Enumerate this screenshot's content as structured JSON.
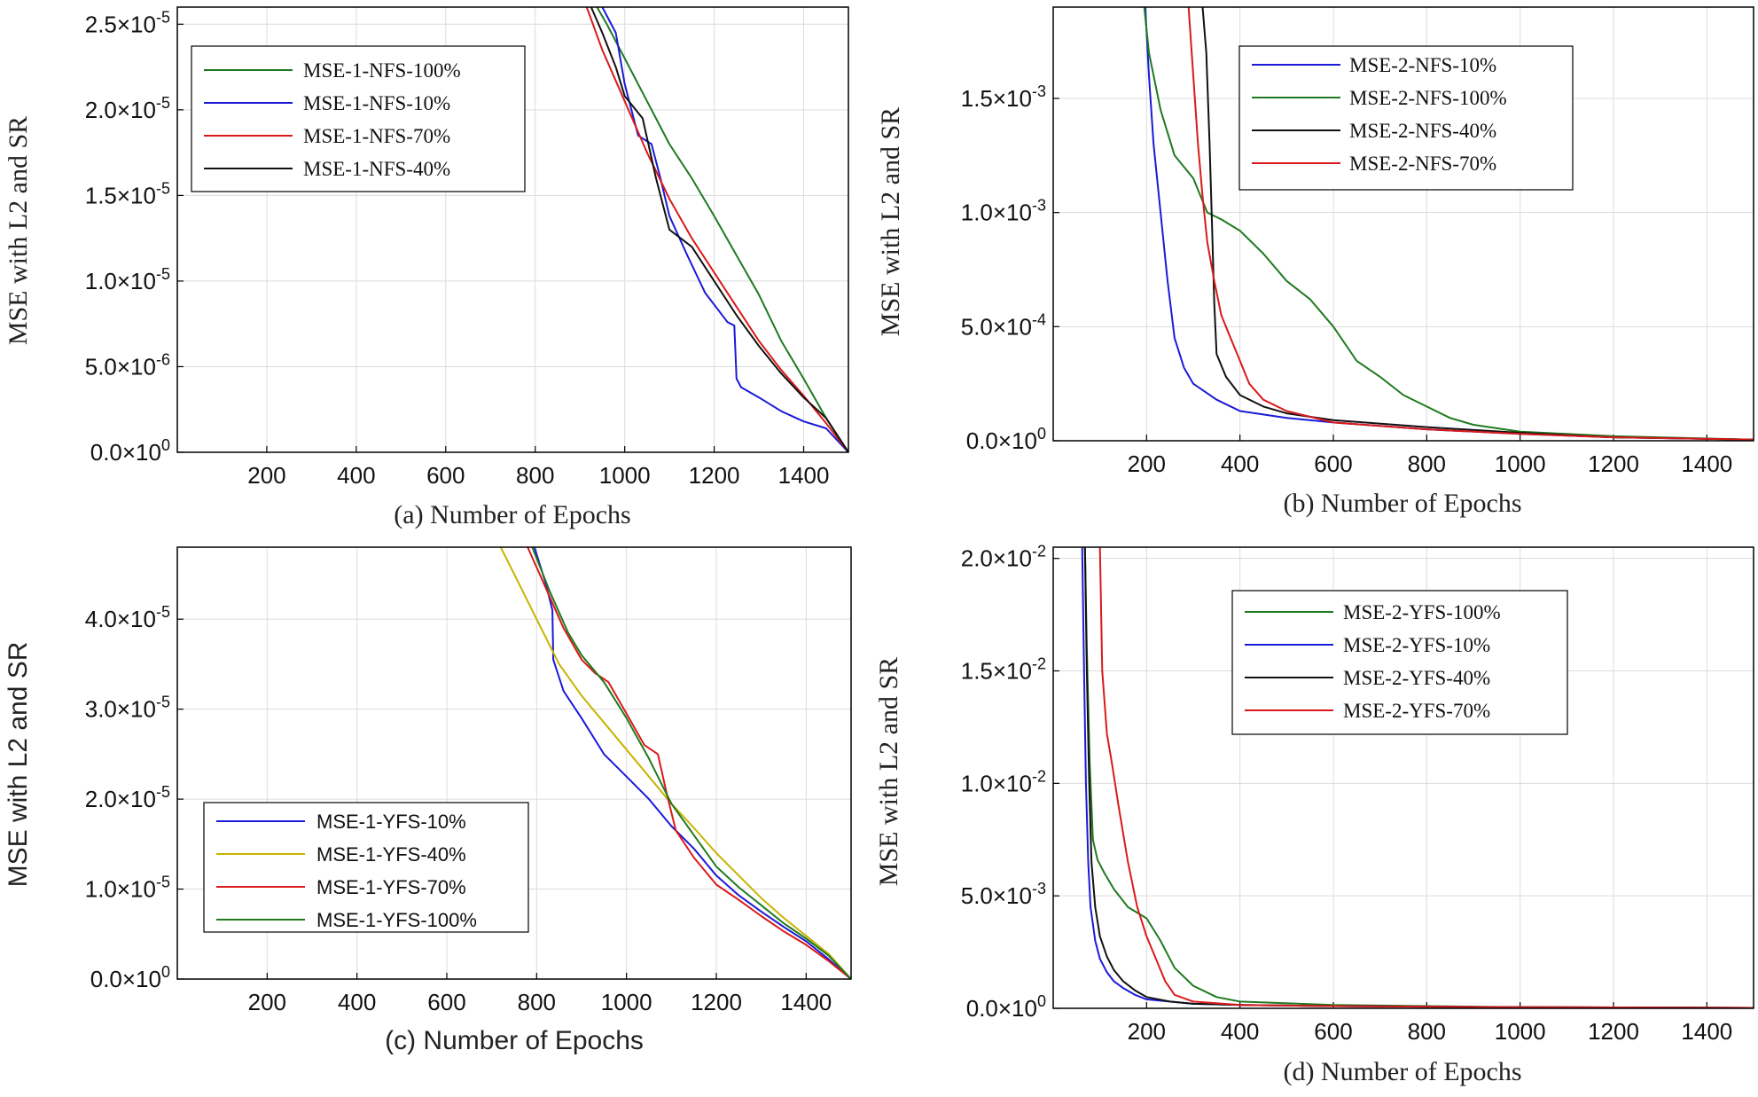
{
  "chart_data": [
    {
      "id": "a",
      "type": "line",
      "xlabel": "(a) Number of Epochs",
      "ylabel": "MSE with L2 and SR",
      "xlim": [
        0,
        1500
      ],
      "ylim": [
        0,
        2.6e-05
      ],
      "xticks": [
        200,
        400,
        600,
        800,
        1000,
        1200,
        1400
      ],
      "yticks": [
        {
          "mant": "0.0",
          "exp": "0"
        },
        {
          "mant": "5.0",
          "exp": "-6"
        },
        {
          "mant": "1.0",
          "exp": "-5"
        },
        {
          "mant": "1.5",
          "exp": "-5"
        },
        {
          "mant": "2.0",
          "exp": "-5"
        },
        {
          "mant": "2.5",
          "exp": "-5"
        }
      ],
      "grid": true,
      "legend_position": "top-left",
      "series": [
        {
          "name": "MSE-1-NFS-100%",
          "color": "#1f7a1f",
          "x": [
            938,
            960,
            1000,
            1050,
            1100,
            1150,
            1200,
            1250,
            1300,
            1350,
            1400,
            1450,
            1500
          ],
          "y": [
            2.6e-05,
            2.5e-05,
            2.3e-05,
            2.05e-05,
            1.8e-05,
            1.6e-05,
            1.38e-05,
            1.15e-05,
            9.2e-06,
            6.5e-06,
            4.3e-06,
            2e-06,
            0
          ]
        },
        {
          "name": "MSE-1-NFS-10%",
          "color": "#1a1ad8",
          "x": [
            950,
            980,
            1000,
            1030,
            1060,
            1080,
            1100,
            1140,
            1180,
            1230,
            1245,
            1250,
            1260,
            1300,
            1350,
            1400,
            1450,
            1500
          ],
          "y": [
            2.6e-05,
            2.45e-05,
            2.15e-05,
            1.85e-05,
            1.8e-05,
            1.6e-05,
            1.38e-05,
            1.15e-05,
            9.3e-06,
            7.6e-06,
            7.4e-06,
            4.3e-06,
            3.8e-06,
            3.2e-06,
            2.4e-06,
            1.8e-06,
            1.4e-06,
            0
          ]
        },
        {
          "name": "MSE-1-NFS-70%",
          "color": "#d91a1a",
          "x": [
            915,
            950,
            1000,
            1050,
            1100,
            1150,
            1200,
            1250,
            1300,
            1350,
            1400,
            1450,
            1500
          ],
          "y": [
            2.6e-05,
            2.35e-05,
            2.05e-05,
            1.75e-05,
            1.48e-05,
            1.25e-05,
            1.05e-05,
            8.5e-06,
            6.5e-06,
            4.8e-06,
            3.3e-06,
            1.7e-06,
            0
          ]
        },
        {
          "name": "MSE-1-NFS-40%",
          "color": "#111111",
          "x": [
            925,
            950,
            980,
            1000,
            1040,
            1070,
            1100,
            1150,
            1200,
            1250,
            1300,
            1350,
            1400,
            1450,
            1500
          ],
          "y": [
            2.6e-05,
            2.45e-05,
            2.25e-05,
            2.08e-05,
            1.95e-05,
            1.6e-05,
            1.3e-05,
            1.2e-05,
            1e-05,
            8e-06,
            6.2e-06,
            4.6e-06,
            3.2e-06,
            2e-06,
            0
          ]
        }
      ]
    },
    {
      "id": "b",
      "type": "line",
      "xlabel": "(b) Number of Epochs",
      "ylabel": "MSE with L2 and SR",
      "xlim": [
        0,
        1500
      ],
      "ylim": [
        0,
        0.0019
      ],
      "xticks": [
        200,
        400,
        600,
        800,
        1000,
        1200,
        1400
      ],
      "yticks": [
        {
          "mant": "0.0",
          "exp": "0"
        },
        {
          "mant": "5.0",
          "exp": "-4"
        },
        {
          "mant": "1.0",
          "exp": "-3"
        },
        {
          "mant": "1.5",
          "exp": "-3"
        }
      ],
      "grid": true,
      "legend_position": "top-center",
      "series": [
        {
          "name": "MSE-2-NFS-10%",
          "color": "#1a1ad8",
          "x": [
            197,
            205,
            215,
            230,
            245,
            260,
            280,
            300,
            350,
            400,
            500,
            600,
            800,
            1000,
            1200,
            1500
          ],
          "y": [
            0.0019,
            0.0016,
            0.0013,
            0.001,
            0.0007,
            0.00045,
            0.00032,
            0.00025,
            0.00018,
            0.00013,
            0.0001,
            8e-05,
            5e-05,
            3e-05,
            1.5e-05,
            5e-06
          ]
        },
        {
          "name": "MSE-2-NFS-100%",
          "color": "#1f7a1f",
          "x": [
            195,
            205,
            230,
            260,
            300,
            330,
            360,
            400,
            450,
            500,
            550,
            600,
            650,
            700,
            750,
            800,
            850,
            900,
            1000,
            1200,
            1500
          ],
          "y": [
            0.0019,
            0.0017,
            0.00145,
            0.00125,
            0.00115,
            0.001,
            0.00097,
            0.00092,
            0.00082,
            0.0007,
            0.00062,
            0.0005,
            0.00035,
            0.00028,
            0.0002,
            0.00015,
            0.0001,
            7e-05,
            4e-05,
            2e-05,
            5e-06
          ]
        },
        {
          "name": "MSE-2-NFS-40%",
          "color": "#111111",
          "x": [
            320,
            328,
            335,
            340,
            345,
            350,
            370,
            400,
            450,
            500,
            600,
            800,
            1000,
            1200,
            1500
          ],
          "y": [
            0.0019,
            0.0017,
            0.0013,
            0.00095,
            0.0006,
            0.00038,
            0.00028,
            0.0002,
            0.00015,
            0.00012,
            9e-05,
            6e-05,
            3.5e-05,
            1.5e-05,
            5e-06
          ]
        },
        {
          "name": "MSE-2-NFS-70%",
          "color": "#d91a1a",
          "x": [
            290,
            300,
            310,
            320,
            330,
            345,
            360,
            380,
            400,
            420,
            450,
            500,
            600,
            800,
            1000,
            1200,
            1500
          ],
          "y": [
            0.0019,
            0.0016,
            0.0013,
            0.00107,
            0.00087,
            0.0007,
            0.00055,
            0.00045,
            0.00035,
            0.00025,
            0.00018,
            0.00013,
            8e-05,
            5e-05,
            3e-05,
            1.5e-05,
            5e-06
          ]
        }
      ]
    },
    {
      "id": "c",
      "type": "line",
      "xlabel": "(c) Number of Epochs",
      "ylabel": "MSE with L2 and SR",
      "xlim": [
        0,
        1500
      ],
      "ylim": [
        0,
        4.8e-05
      ],
      "xticks": [
        200,
        400,
        600,
        800,
        1000,
        1200,
        1400
      ],
      "yticks": [
        {
          "mant": "0.0",
          "exp": "0"
        },
        {
          "mant": "1.0",
          "exp": "-5"
        },
        {
          "mant": "2.0",
          "exp": "-5"
        },
        {
          "mant": "3.0",
          "exp": "-5"
        },
        {
          "mant": "4.0",
          "exp": "-5"
        }
      ],
      "grid": true,
      "legend_position": "bottom-left",
      "series": [
        {
          "name": "MSE-1-YFS-10%",
          "color": "#1a1ad8",
          "x": [
            795,
            820,
            835,
            837,
            860,
            900,
            950,
            1000,
            1050,
            1100,
            1150,
            1200,
            1250,
            1300,
            1350,
            1400,
            1450,
            1500
          ],
          "y": [
            4.8e-05,
            4.4e-05,
            4.1e-05,
            3.55e-05,
            3.2e-05,
            2.9e-05,
            2.5e-05,
            2.25e-05,
            2e-05,
            1.7e-05,
            1.45e-05,
            1.15e-05,
            9.3e-06,
            7.5e-06,
            5.8e-06,
            4.2e-06,
            2.2e-06,
            0
          ]
        },
        {
          "name": "MSE-1-YFS-40%",
          "color": "#c8b400",
          "x": [
            720,
            760,
            800,
            850,
            900,
            950,
            1000,
            1050,
            1100,
            1150,
            1200,
            1250,
            1300,
            1350,
            1400,
            1450,
            1500
          ],
          "y": [
            4.8e-05,
            4.4e-05,
            4e-05,
            3.5e-05,
            3.15e-05,
            2.85e-05,
            2.55e-05,
            2.25e-05,
            1.95e-05,
            1.68e-05,
            1.4e-05,
            1.15e-05,
            9e-06,
            6.8e-06,
            4.8e-06,
            2.8e-06,
            0
          ]
        },
        {
          "name": "MSE-1-YFS-70%",
          "color": "#d91a1a",
          "x": [
            780,
            820,
            860,
            900,
            930,
            960,
            1000,
            1040,
            1070,
            1090,
            1110,
            1150,
            1200,
            1250,
            1300,
            1350,
            1400,
            1450,
            1500
          ],
          "y": [
            4.8e-05,
            4.35e-05,
            3.9e-05,
            3.55e-05,
            3.4e-05,
            3.3e-05,
            2.95e-05,
            2.6e-05,
            2.5e-05,
            2.05e-05,
            1.65e-05,
            1.35e-05,
            1.05e-05,
            8.8e-06,
            7e-06,
            5.3e-06,
            3.8e-06,
            2e-06,
            0
          ]
        },
        {
          "name": "MSE-1-YFS-100%",
          "color": "#1f7a1f",
          "x": [
            790,
            830,
            870,
            900,
            950,
            1000,
            1050,
            1100,
            1150,
            1200,
            1250,
            1300,
            1350,
            1400,
            1450,
            1500
          ],
          "y": [
            4.8e-05,
            4.3e-05,
            3.85e-05,
            3.6e-05,
            3.3e-05,
            2.9e-05,
            2.45e-05,
            1.95e-05,
            1.6e-05,
            1.25e-05,
            1.02e-05,
            8.2e-06,
            6.2e-06,
            4.5e-06,
            2.6e-06,
            0
          ]
        }
      ]
    },
    {
      "id": "d",
      "type": "line",
      "xlabel": "(d) Number of Epochs",
      "ylabel": "MSE with L2 and SR",
      "xlim": [
        0,
        1500
      ],
      "ylim": [
        0,
        0.0205
      ],
      "xticks": [
        200,
        400,
        600,
        800,
        1000,
        1200,
        1400
      ],
      "yticks": [
        {
          "mant": "0.0",
          "exp": "0"
        },
        {
          "mant": "5.0",
          "exp": "-3"
        },
        {
          "mant": "1.0",
          "exp": "-2"
        },
        {
          "mant": "1.5",
          "exp": "-2"
        },
        {
          "mant": "2.0",
          "exp": "-2"
        }
      ],
      "grid": true,
      "legend_position": "top-center",
      "series": [
        {
          "name": "MSE-2-YFS-100%",
          "color": "#1f7a1f",
          "x": [
            68,
            72,
            78,
            85,
            95,
            110,
            130,
            160,
            200,
            230,
            260,
            300,
            350,
            400,
            600,
            800,
            1000,
            1500
          ],
          "y": [
            0.0205,
            0.016,
            0.011,
            0.0075,
            0.0066,
            0.006,
            0.0053,
            0.0045,
            0.004,
            0.003,
            0.0018,
            0.001,
            0.0005,
            0.0003,
            0.00015,
            0.0001,
            5e-05,
            2e-05
          ]
        },
        {
          "name": "MSE-2-YFS-10%",
          "color": "#1a1ad8",
          "x": [
            62,
            66,
            70,
            75,
            80,
            90,
            100,
            115,
            130,
            150,
            175,
            200,
            250,
            300,
            400,
            600,
            1000,
            1500
          ],
          "y": [
            0.0205,
            0.015,
            0.01,
            0.0065,
            0.0045,
            0.003,
            0.0022,
            0.0016,
            0.0012,
            0.0009,
            0.0006,
            0.0004,
            0.0003,
            0.0002,
            0.00015,
            0.0001,
            5e-05,
            2e-05
          ]
        },
        {
          "name": "MSE-2-YFS-40%",
          "color": "#111111",
          "x": [
            68,
            72,
            77,
            82,
            90,
            100,
            115,
            130,
            150,
            175,
            200,
            250,
            300,
            400,
            600,
            1000,
            1500
          ],
          "y": [
            0.0205,
            0.015,
            0.01,
            0.0065,
            0.0045,
            0.0032,
            0.0023,
            0.0017,
            0.0012,
            0.0008,
            0.0005,
            0.0003,
            0.0002,
            0.00015,
            0.0001,
            5e-05,
            2e-05
          ]
        },
        {
          "name": "MSE-2-YFS-70%",
          "color": "#d91a1a",
          "x": [
            100,
            105,
            115,
            125,
            140,
            160,
            180,
            200,
            220,
            240,
            260,
            300,
            400,
            600,
            1000,
            1500
          ],
          "y": [
            0.0205,
            0.015,
            0.0122,
            0.011,
            0.009,
            0.0065,
            0.0045,
            0.0032,
            0.0022,
            0.0012,
            0.0006,
            0.0003,
            0.00015,
            0.0001,
            5e-05,
            2e-05
          ]
        }
      ]
    }
  ]
}
